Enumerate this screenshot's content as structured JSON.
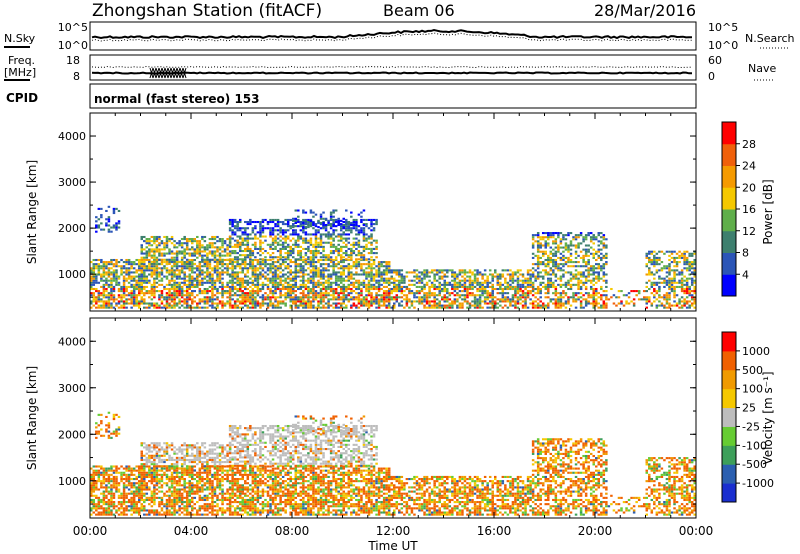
{
  "header": {
    "station": "Zhongshan Station (fitACF)",
    "beam": "Beam 06",
    "date": "28/Mar/2016"
  },
  "noise_panel": {
    "left_label": "N.Sky",
    "right_label": "N.Search",
    "left_ticks": [
      "10^5",
      "10^0"
    ],
    "right_ticks": [
      "10^5",
      "10^0"
    ]
  },
  "freq_panel": {
    "left_label_1": "Freq.",
    "left_label_2": "[MHz]",
    "right_label": "Nave",
    "left_ticks": [
      "18",
      "8"
    ],
    "right_ticks": [
      "60",
      "0"
    ]
  },
  "cpid_panel": {
    "label": "CPID",
    "mode": "normal (fast stereo) 153"
  },
  "x_axis": {
    "ticks": [
      "00:00",
      "04:00",
      "08:00",
      "12:00",
      "16:00",
      "20:00",
      "00:00"
    ],
    "label": "Time UT"
  },
  "colors": {
    "power": [
      "#0000ff",
      "#2b55b7",
      "#3d7f6e",
      "#5fae4a",
      "#f5c800",
      "#f59a00",
      "#f0600a",
      "#ff0000"
    ],
    "velocity": [
      "#ff0000",
      "#f06000",
      "#f09a00",
      "#f5c800",
      "#bdbdbd",
      "#66cc33",
      "#3d9f5a",
      "#2b5fb0",
      "#1a2fd0"
    ]
  },
  "chart_data": [
    {
      "type": "heatmap",
      "title": "Power",
      "ylabel": "Slant Range [km]",
      "xlabel": "",
      "ylim": [
        200,
        4500
      ],
      "y_ticks": [
        "1000",
        "2000",
        "3000",
        "4000"
      ],
      "x_ticks": [
        "00:00",
        "04:00",
        "08:00",
        "12:00",
        "16:00",
        "20:00",
        "00:00"
      ],
      "colorbar_label": "Power [dB]",
      "colorbar_ticks": [
        "4",
        "8",
        "12",
        "16",
        "20",
        "24",
        "28"
      ],
      "colorbar_range": [
        0,
        30
      ]
    },
    {
      "type": "heatmap",
      "title": "Velocity",
      "ylabel": "Slant Range [km]",
      "xlabel": "Time UT",
      "ylim": [
        200,
        4500
      ],
      "y_ticks": [
        "1000",
        "2000",
        "3000",
        "4000"
      ],
      "x_ticks": [
        "00:00",
        "04:00",
        "08:00",
        "12:00",
        "16:00",
        "20:00",
        "00:00"
      ],
      "colorbar_label": "Velocity [m s⁻¹]",
      "colorbar_ticks": [
        "1000",
        "500",
        "100",
        "25",
        "-25",
        "-100",
        "-500",
        "-1000"
      ]
    }
  ]
}
